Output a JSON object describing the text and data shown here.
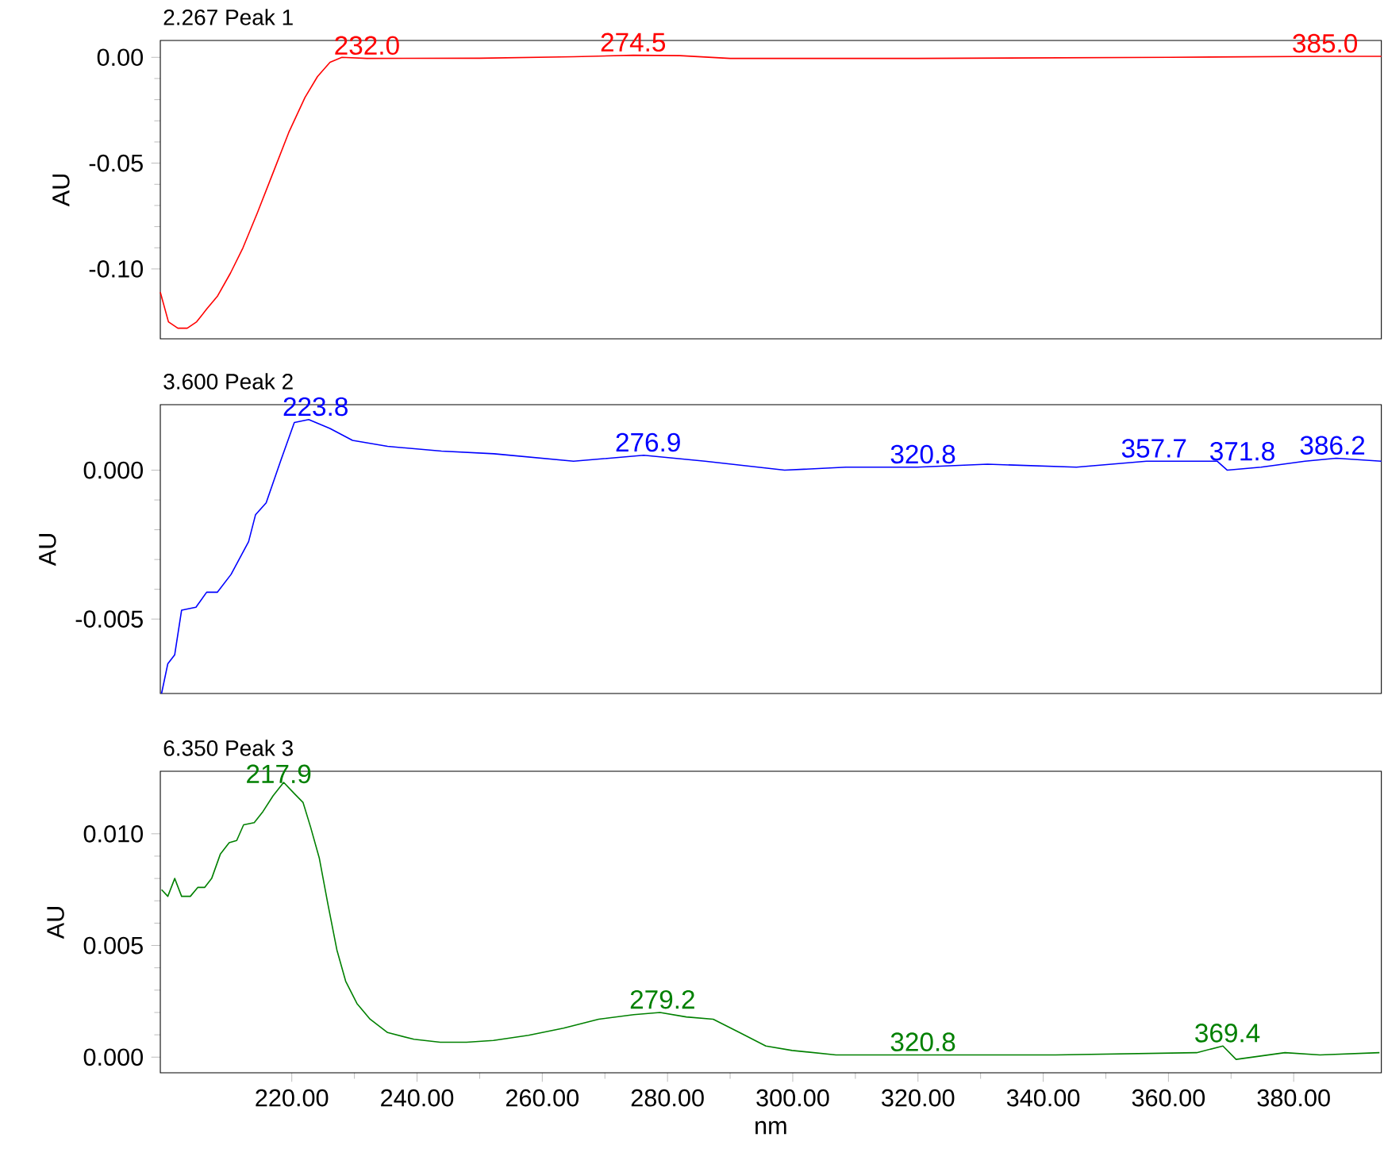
{
  "chart_data": [
    {
      "type": "line",
      "title": "2.267 Peak 1",
      "ylabel": "AU",
      "xlim": [
        199,
        394
      ],
      "ylim": [
        -0.133,
        0.008
      ],
      "tick_labels": "y",
      "yticks": [
        {
          "value": 0,
          "label": "0.00"
        },
        {
          "value": -0.05,
          "label": "-0.05"
        },
        {
          "value": -0.1,
          "label": "-0.10"
        }
      ],
      "series": [
        {
          "color": "#ff0000",
          "x": [
            199,
            200.3,
            201.8,
            203.3,
            204.8,
            206.4,
            208.1,
            210.2,
            212.2,
            214.5,
            217,
            219.5,
            222.1,
            224.1,
            226.1,
            228,
            232,
            250,
            265,
            274.5,
            282,
            290,
            320,
            360,
            385,
            394
          ],
          "values": [
            -0.111,
            -0.125,
            -0.128,
            -0.128,
            -0.125,
            -0.119,
            -0.113,
            -0.102,
            -0.09,
            -0.0735,
            -0.0546,
            -0.0356,
            -0.019,
            -0.0091,
            -0.0023,
            0,
            -0.0005,
            -0.0004,
            0.0003,
            0.001,
            0.0008,
            -0.0005,
            -0.0005,
            0,
            0.0005,
            0.0005
          ]
        }
      ],
      "annotations": [
        {
          "text": "232.0",
          "x": 232.0,
          "y": -0.0005
        },
        {
          "text": "274.5",
          "x": 274.5,
          "y": 0.001
        },
        {
          "text": "385.0",
          "x": 385.0,
          "y": 0.0005
        }
      ]
    },
    {
      "type": "line",
      "title": "3.600 Peak 2",
      "ylabel": "AU",
      "xlim": [
        199,
        394
      ],
      "ylim": [
        -0.0075,
        0.0022
      ],
      "tick_labels": "y",
      "yticks": [
        {
          "value": 0,
          "label": "0.000"
        },
        {
          "value": -0.005,
          "label": "-0.005"
        }
      ],
      "series": [
        {
          "color": "#0000ff",
          "x": [
            199.2,
            200.2,
            201.3,
            202.4,
            204.7,
            206.4,
            208.1,
            210.3,
            213.1,
            214.2,
            215.9,
            218.2,
            220.4,
            222.7,
            226.1,
            229.7,
            235.3,
            243.9,
            252.3,
            265,
            276.2,
            286,
            298.7,
            308.5,
            319.9,
            331.1,
            345.3,
            356.5,
            367.8,
            369.4,
            374.8,
            381.8,
            386.8,
            394
          ],
          "values": [
            -0.0075,
            -0.0065,
            -0.0062,
            -0.0047,
            -0.0046,
            -0.0041,
            -0.0041,
            -0.0035,
            -0.0024,
            -0.0015,
            -0.0011,
            0.0003,
            0.0016,
            0.0017,
            0.0014,
            0.001,
            0.0008,
            0.00064,
            0.00055,
            0.0003,
            0.0005,
            0.0003,
            0,
            0.0001,
            0.0001,
            0.0002,
            0.0001,
            0.0003,
            0.0003,
            0,
            0.0001,
            0.0003,
            0.0004,
            0.0003
          ]
        }
      ],
      "annotations": [
        {
          "text": "223.8",
          "x": 223.8,
          "y": 0.0017
        },
        {
          "text": "276.9",
          "x": 276.9,
          "y": 0.0005
        },
        {
          "text": "320.8",
          "x": 320.8,
          "y": 0.0001
        },
        {
          "text": "357.7",
          "x": 357.7,
          "y": 0.0003
        },
        {
          "text": "371.8",
          "x": 371.8,
          "y": 0.0002
        },
        {
          "text": "386.2",
          "x": 386.2,
          "y": 0.0004
        }
      ]
    },
    {
      "type": "line",
      "title": "6.350 Peak 3",
      "ylabel": "AU",
      "xlabel": "nm",
      "xlim": [
        199,
        394
      ],
      "ylim": [
        -0.0007,
        0.0128
      ],
      "xticks": [
        {
          "value": 220,
          "label": "220.00"
        },
        {
          "value": 240,
          "label": "240.00"
        },
        {
          "value": 260,
          "label": "260.00"
        },
        {
          "value": 280,
          "label": "280.00"
        },
        {
          "value": 300,
          "label": "300.00"
        },
        {
          "value": 320,
          "label": "320.00"
        },
        {
          "value": 340,
          "label": "340.00"
        },
        {
          "value": 360,
          "label": "360.00"
        },
        {
          "value": 380,
          "label": "380.00"
        }
      ],
      "yticks": [
        {
          "value": 0,
          "label": "0.000"
        },
        {
          "value": 0.005,
          "label": "0.005"
        },
        {
          "value": 0.01,
          "label": "0.010"
        }
      ],
      "series": [
        {
          "color": "#008000",
          "x": [
            199.2,
            200.2,
            201.3,
            202.4,
            203.8,
            205,
            206.1,
            207.2,
            208.6,
            210,
            211.2,
            212.3,
            214,
            215.4,
            217,
            218.7,
            220.4,
            221.8,
            223,
            224.4,
            225.8,
            227.2,
            228.6,
            230.4,
            232.5,
            235.3,
            239.5,
            243.7,
            247.9,
            252.2,
            257.8,
            263.4,
            269,
            274.6,
            278.8,
            283,
            287.3,
            291.5,
            295.7,
            299.9,
            306.9,
            319.6,
            342,
            364.5,
            368.7,
            370.8,
            378.6,
            384.2,
            393.7
          ],
          "values": [
            0.0075,
            0.0072,
            0.008,
            0.0072,
            0.0072,
            0.0076,
            0.0076,
            0.008,
            0.0091,
            0.0096,
            0.0097,
            0.0104,
            0.0105,
            0.011,
            0.0117,
            0.0123,
            0.0118,
            0.0114,
            0.0103,
            0.0089,
            0.0068,
            0.0048,
            0.0034,
            0.0024,
            0.0017,
            0.0011,
            0.0008,
            0.00067,
            0.00067,
            0.00075,
            0.00098,
            0.0013,
            0.0017,
            0.0019,
            0.002,
            0.0018,
            0.0017,
            0.0011,
            0.0005,
            0.0003,
            0.0001,
            0.0001,
            0.0001,
            0.0002,
            0.0005,
            -0.0001,
            0.0002,
            0.0001,
            0.0002
          ]
        }
      ],
      "annotations": [
        {
          "text": "217.9",
          "x": 217.9,
          "y": 0.0121
        },
        {
          "text": "279.2",
          "x": 279.2,
          "y": 0.002
        },
        {
          "text": "320.8",
          "x": 320.8,
          "y": 0.0001
        },
        {
          "text": "369.4",
          "x": 369.4,
          "y": 0.0005
        }
      ]
    }
  ]
}
